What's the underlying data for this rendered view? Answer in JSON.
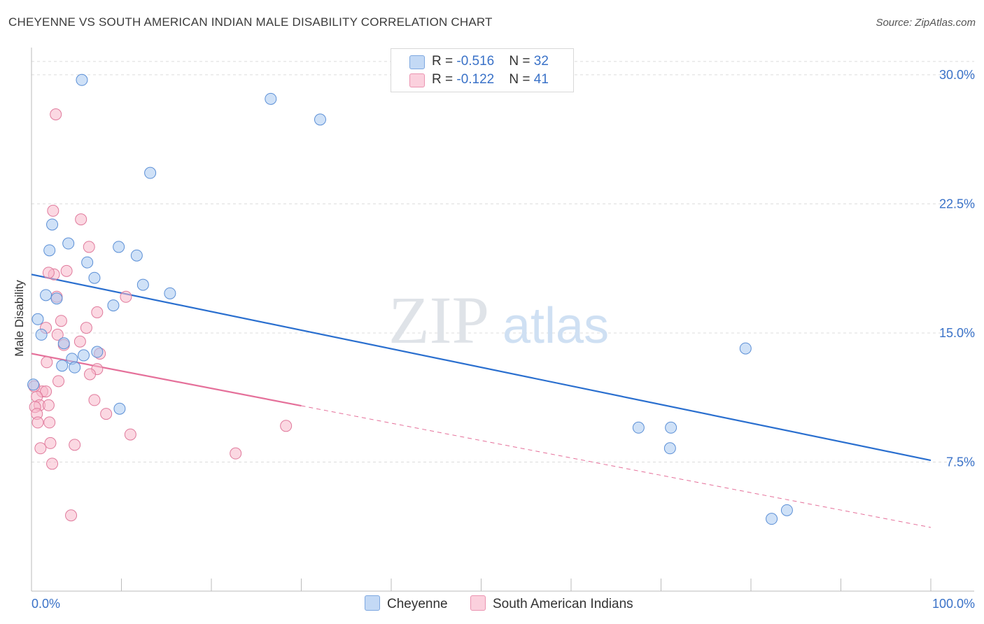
{
  "header": {
    "title": "CHEYENNE VS SOUTH AMERICAN INDIAN MALE DISABILITY CORRELATION CHART",
    "source": "Source: ZipAtlas.com"
  },
  "watermark": {
    "zip": "ZIP",
    "atlas": "atlas"
  },
  "legend": {
    "rows": [
      {
        "r_label": "R = ",
        "r_value": "-0.516",
        "n_label": "N = ",
        "n_value": "32",
        "color": "#a8c8f0"
      },
      {
        "r_label": "R = ",
        "r_value": "-0.122",
        "n_label": "N = ",
        "n_value": "41",
        "color": "#f7b8cb"
      }
    ]
  },
  "bottom_legend": [
    {
      "label": "Cheyenne",
      "color": "#a8c8f0"
    },
    {
      "label": "South American Indians",
      "color": "#f7b8cb"
    }
  ],
  "chart_data": {
    "type": "scatter",
    "xlabel": "",
    "ylabel": "Male Disability",
    "xlim": [
      0,
      100
    ],
    "ylim": [
      0,
      31.5
    ],
    "x_tick_labels": [
      "0.0%",
      "100.0%"
    ],
    "y_ticks": [
      7.5,
      15.0,
      22.5,
      30.0
    ],
    "y_tick_labels": [
      "7.5%",
      "15.0%",
      "22.5%",
      "30.0%"
    ],
    "grid": "horizontal dashed",
    "legend_position": "top-center",
    "series": [
      {
        "name": "Cheyenne",
        "color": "#a8c8f0",
        "stroke": "#5b8fd6",
        "trend_color": "#2a6fcf",
        "trend": {
          "x0": 0,
          "y0": 18.4,
          "x1": 100,
          "y1": 7.6,
          "dashed_from": null
        },
        "points": [
          [
            5.6,
            29.7
          ],
          [
            26.6,
            28.6
          ],
          [
            32.1,
            27.4
          ],
          [
            13.2,
            24.3
          ],
          [
            2.3,
            21.3
          ],
          [
            4.1,
            20.2
          ],
          [
            2.0,
            19.8
          ],
          [
            9.7,
            20.0
          ],
          [
            11.7,
            19.5
          ],
          [
            6.2,
            19.1
          ],
          [
            7.0,
            18.2
          ],
          [
            12.4,
            17.8
          ],
          [
            1.6,
            17.2
          ],
          [
            2.8,
            17.0
          ],
          [
            15.4,
            17.3
          ],
          [
            9.1,
            16.6
          ],
          [
            0.7,
            15.8
          ],
          [
            1.1,
            14.9
          ],
          [
            3.6,
            14.4
          ],
          [
            7.3,
            13.9
          ],
          [
            4.5,
            13.5
          ],
          [
            5.8,
            13.7
          ],
          [
            3.4,
            13.1
          ],
          [
            4.8,
            13.0
          ],
          [
            0.2,
            12.0
          ],
          [
            9.8,
            10.6
          ],
          [
            67.5,
            9.5
          ],
          [
            71.1,
            9.5
          ],
          [
            71.0,
            8.3
          ],
          [
            79.4,
            14.1
          ],
          [
            84.0,
            4.7
          ],
          [
            82.3,
            4.2
          ]
        ]
      },
      {
        "name": "South American Indians",
        "color": "#f7b8cb",
        "stroke": "#e07a9c",
        "trend_color": "#e5709a",
        "trend": {
          "x0": 0,
          "y0": 13.8,
          "x1": 100,
          "y1": 3.7,
          "dashed_from": 30
        },
        "points": [
          [
            2.7,
            27.7
          ],
          [
            2.4,
            22.1
          ],
          [
            5.5,
            21.6
          ],
          [
            6.4,
            20.0
          ],
          [
            2.5,
            18.4
          ],
          [
            1.9,
            18.5
          ],
          [
            3.9,
            18.6
          ],
          [
            2.8,
            17.1
          ],
          [
            10.5,
            17.1
          ],
          [
            7.3,
            16.2
          ],
          [
            3.3,
            15.7
          ],
          [
            1.6,
            15.3
          ],
          [
            6.1,
            15.3
          ],
          [
            2.9,
            14.9
          ],
          [
            5.4,
            14.5
          ],
          [
            3.6,
            14.3
          ],
          [
            7.6,
            13.8
          ],
          [
            1.7,
            13.3
          ],
          [
            7.3,
            12.9
          ],
          [
            6.5,
            12.6
          ],
          [
            3.0,
            12.2
          ],
          [
            1.2,
            11.6
          ],
          [
            1.6,
            11.6
          ],
          [
            0.6,
            11.3
          ],
          [
            7.0,
            11.1
          ],
          [
            0.9,
            10.8
          ],
          [
            1.9,
            10.8
          ],
          [
            0.4,
            10.7
          ],
          [
            0.6,
            10.3
          ],
          [
            8.3,
            10.3
          ],
          [
            0.7,
            9.8
          ],
          [
            2.0,
            9.8
          ],
          [
            28.3,
            9.6
          ],
          [
            11.0,
            9.1
          ],
          [
            2.1,
            8.6
          ],
          [
            4.8,
            8.5
          ],
          [
            1.0,
            8.3
          ],
          [
            22.7,
            8.0
          ],
          [
            2.3,
            7.4
          ],
          [
            4.4,
            4.4
          ],
          [
            0.3,
            11.9
          ]
        ]
      }
    ]
  }
}
